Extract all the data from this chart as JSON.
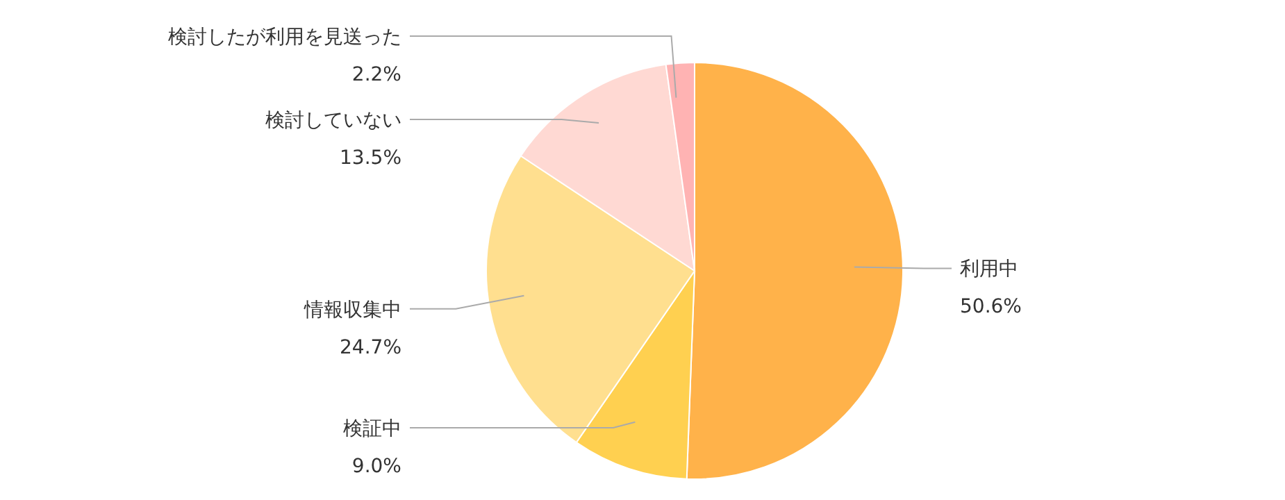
{
  "chart_data": {
    "type": "pie",
    "categories": [
      "利用中",
      "検証中",
      "情報収集中",
      "検討していない",
      "検討したが利用を見送った"
    ],
    "values": [
      50.6,
      9.0,
      24.7,
      13.5,
      2.2
    ],
    "colors": [
      "#ffb24a",
      "#ffd050",
      "#ffdf8f",
      "#ffd9d3",
      "#ffb3b3"
    ],
    "value_labels": [
      "50.6%",
      "9.0%",
      "24.7%",
      "13.5%",
      "2.2%"
    ],
    "legend": false
  }
}
